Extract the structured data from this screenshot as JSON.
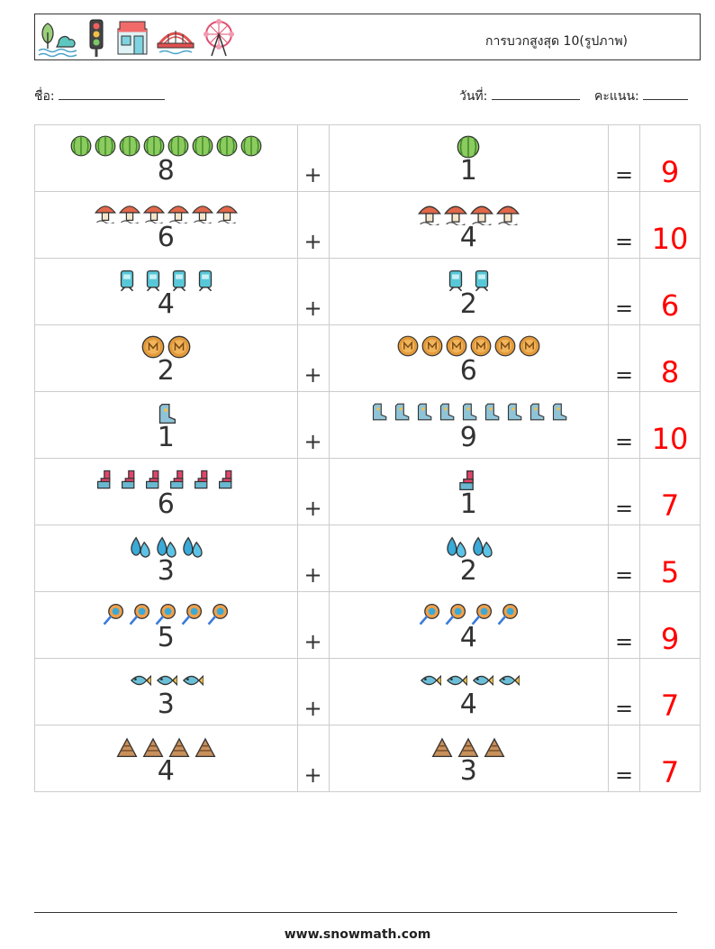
{
  "header": {
    "title": "การบวกสูงสุด 10(รูปภาพ)",
    "icons": [
      "tree-lake-icon",
      "traffic-light-icon",
      "shop-icon",
      "bridge-icon",
      "ferris-wheel-icon"
    ]
  },
  "info": {
    "name_label": "ชื่อ:",
    "date_label": "วันที่:",
    "score_label": "คะแนน:"
  },
  "symbols": {
    "plus": "+",
    "equals": "="
  },
  "rows": [
    {
      "a": "8",
      "b": "1",
      "answer": "9",
      "icon": "watermelon-icon",
      "a_count": 8,
      "b_count": 1
    },
    {
      "a": "6",
      "b": "4",
      "answer": "10",
      "icon": "mushroom-icon",
      "a_count": 6,
      "b_count": 4
    },
    {
      "a": "4",
      "b": "2",
      "answer": "6",
      "icon": "tram-icon",
      "a_count": 4,
      "b_count": 2
    },
    {
      "a": "2",
      "b": "6",
      "answer": "8",
      "icon": "coin-icon",
      "a_count": 2,
      "b_count": 6
    },
    {
      "a": "1",
      "b": "9",
      "answer": "10",
      "icon": "boot-icon",
      "a_count": 1,
      "b_count": 9
    },
    {
      "a": "6",
      "b": "1",
      "answer": "7",
      "icon": "sock-icon",
      "a_count": 6,
      "b_count": 1
    },
    {
      "a": "3",
      "b": "2",
      "answer": "5",
      "icon": "water-drops-icon",
      "a_count": 3,
      "b_count": 2
    },
    {
      "a": "5",
      "b": "4",
      "answer": "9",
      "icon": "lollipop-icon",
      "a_count": 5,
      "b_count": 4
    },
    {
      "a": "3",
      "b": "4",
      "answer": "7",
      "icon": "fish-icon",
      "a_count": 3,
      "b_count": 4
    },
    {
      "a": "4",
      "b": "3",
      "answer": "7",
      "icon": "pyramid-icon",
      "a_count": 4,
      "b_count": 3
    }
  ],
  "footer": {
    "website": "www.snowmath.com"
  }
}
